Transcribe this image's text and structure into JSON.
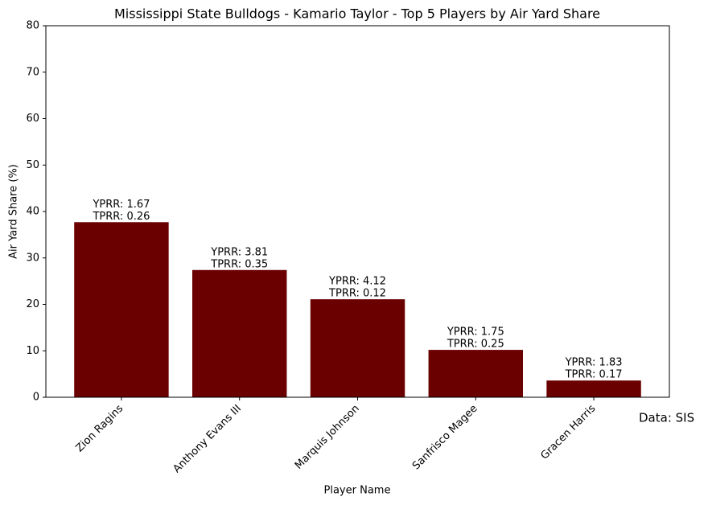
{
  "chart_data": {
    "type": "bar",
    "title": "Mississippi State Bulldogs - Kamario Taylor - Top 5 Players by Air Yard Share",
    "x_label": "Player Name",
    "y_label": "Air Yard Share (%)",
    "categories": [
      "Zion Ragins",
      "Anthony Evans III",
      "Marquis Johnson",
      "Sanfrisco Magee",
      "Gracen Harris"
    ],
    "values": [
      37.7,
      27.4,
      21.1,
      10.2,
      3.6
    ],
    "bar_labels": [
      [
        "YPRR: 1.67",
        "TPRR: 0.26"
      ],
      [
        "YPRR: 3.81",
        "TPRR: 0.35"
      ],
      [
        "YPRR: 4.12",
        "TPRR: 0.12"
      ],
      [
        "YPRR: 1.75",
        "TPRR: 0.25"
      ],
      [
        "YPRR: 1.83",
        "TPRR: 0.17"
      ]
    ],
    "color": "#6b0000",
    "ylim": [
      0,
      80
    ],
    "yticks": [
      0,
      10,
      20,
      30,
      40,
      50,
      60,
      70,
      80
    ],
    "annotation": "Data: SIS"
  }
}
